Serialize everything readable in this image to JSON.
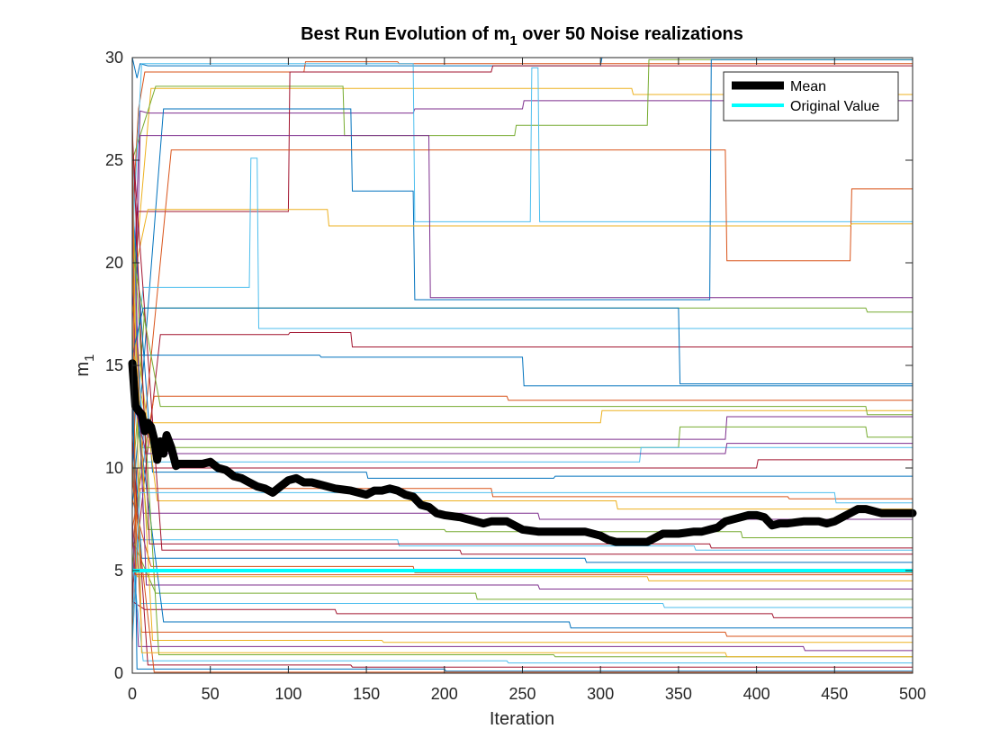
{
  "chart_data": {
    "type": "line",
    "title": "Best Run Evolution of m",
    "title_subscript": "1",
    "title_suffix": " over 50 Noise realizations",
    "xlabel": "Iteration",
    "ylabel": "m",
    "ylabel_subscript": "1",
    "xlim": [
      0,
      500
    ],
    "ylim": [
      0,
      30
    ],
    "xticks": [
      0,
      50,
      100,
      150,
      200,
      250,
      300,
      350,
      400,
      450,
      500
    ],
    "yticks": [
      0,
      5,
      10,
      15,
      20,
      25,
      30
    ],
    "grid": false,
    "legend_position": "top-right",
    "colors": {
      "mean": "#000000",
      "original": "#00ffff",
      "runs": [
        "#0072bd",
        "#d95319",
        "#edb120",
        "#7e2f8e",
        "#77ac30",
        "#4dbeee",
        "#a2142f"
      ]
    },
    "series": [
      {
        "name": "Mean",
        "x": [
          0,
          2,
          4,
          6,
          8,
          10,
          12,
          14,
          16,
          18,
          20,
          22,
          25,
          28,
          30,
          35,
          40,
          45,
          50,
          55,
          60,
          65,
          70,
          75,
          80,
          85,
          90,
          95,
          100,
          105,
          110,
          115,
          120,
          130,
          140,
          145,
          150,
          155,
          160,
          165,
          170,
          175,
          180,
          185,
          190,
          195,
          200,
          210,
          220,
          225,
          230,
          240,
          245,
          250,
          260,
          270,
          280,
          290,
          300,
          305,
          310,
          320,
          330,
          335,
          340,
          350,
          360,
          365,
          370,
          375,
          380,
          390,
          395,
          400,
          405,
          410,
          415,
          420,
          430,
          440,
          445,
          450,
          455,
          460,
          465,
          470,
          480,
          490,
          500
        ],
        "y": [
          15.1,
          13.0,
          12.8,
          12.6,
          11.8,
          12.2,
          12.0,
          11.4,
          10.4,
          11.3,
          10.7,
          11.6,
          11.0,
          10.1,
          10.2,
          10.2,
          10.2,
          10.2,
          10.3,
          10.0,
          9.9,
          9.6,
          9.5,
          9.3,
          9.1,
          9.0,
          8.8,
          9.1,
          9.4,
          9.5,
          9.3,
          9.3,
          9.2,
          9.0,
          8.9,
          8.8,
          8.7,
          8.9,
          8.9,
          9.0,
          8.9,
          8.7,
          8.6,
          8.2,
          8.1,
          7.8,
          7.7,
          7.6,
          7.4,
          7.3,
          7.4,
          7.4,
          7.2,
          7.0,
          6.9,
          6.9,
          6.9,
          6.9,
          6.7,
          6.5,
          6.4,
          6.4,
          6.4,
          6.6,
          6.8,
          6.8,
          6.9,
          6.9,
          7.0,
          7.1,
          7.4,
          7.6,
          7.7,
          7.7,
          7.6,
          7.2,
          7.3,
          7.3,
          7.4,
          7.4,
          7.3,
          7.4,
          7.6,
          7.8,
          8.0,
          8.0,
          7.8,
          7.8,
          7.8
        ]
      },
      {
        "name": "Original Value",
        "x": [
          0,
          500
        ],
        "y": [
          5.0,
          5.0
        ]
      },
      {
        "x": [
          0,
          3,
          5,
          10,
          300,
          301,
          500
        ],
        "y": [
          30.0,
          29.0,
          29.7,
          29.6,
          29.6,
          30.0,
          30.0
        ]
      },
      {
        "x": [
          0,
          4,
          8,
          110,
          111,
          170,
          171,
          500
        ],
        "y": [
          22.0,
          27.5,
          29.3,
          29.3,
          29.8,
          29.8,
          29.7,
          29.7
        ]
      },
      {
        "x": [
          0,
          12,
          20,
          320,
          321,
          500
        ],
        "y": [
          18.0,
          28.5,
          28.5,
          28.5,
          28.2,
          28.2
        ]
      },
      {
        "x": [
          0,
          5,
          10,
          180,
          181,
          250,
          251,
          500
        ],
        "y": [
          17.0,
          27.4,
          27.3,
          27.3,
          27.5,
          27.5,
          27.9,
          27.9
        ]
      },
      {
        "x": [
          0,
          15,
          20,
          135,
          136,
          245,
          246,
          330,
          331,
          500
        ],
        "y": [
          25.0,
          28.6,
          28.6,
          28.6,
          26.2,
          26.2,
          26.7,
          26.7,
          29.9,
          29.9
        ]
      },
      {
        "x": [
          0,
          6,
          10,
          180,
          181,
          255,
          256,
          260,
          261,
          500
        ],
        "y": [
          21.0,
          29.7,
          29.7,
          29.7,
          22.0,
          22.0,
          29.5,
          29.5,
          22.0,
          22.0
        ]
      },
      {
        "x": [
          0,
          3,
          8,
          100,
          101,
          230,
          231,
          500
        ],
        "y": [
          12.0,
          22.5,
          22.5,
          22.5,
          29.3,
          29.3,
          29.6,
          29.6
        ]
      },
      {
        "x": [
          0,
          20,
          25,
          140,
          141,
          180,
          181,
          370,
          371,
          500
        ],
        "y": [
          8.0,
          27.5,
          27.5,
          27.5,
          23.5,
          23.5,
          18.2,
          18.2,
          29.9,
          29.9
        ]
      },
      {
        "x": [
          0,
          25,
          30,
          380,
          381,
          460,
          461,
          500
        ],
        "y": [
          6.0,
          25.5,
          25.5,
          25.5,
          20.1,
          20.1,
          23.6,
          23.6
        ]
      },
      {
        "x": [
          0,
          10,
          15,
          125,
          126,
          460,
          461,
          500
        ],
        "y": [
          19.0,
          22.6,
          22.6,
          22.6,
          21.8,
          21.8,
          21.9,
          21.9
        ]
      },
      {
        "x": [
          0,
          5,
          12,
          190,
          191,
          500
        ],
        "y": [
          11.0,
          26.2,
          26.2,
          26.2,
          18.3,
          18.3
        ]
      },
      {
        "x": [
          0,
          8,
          15,
          470,
          471,
          500
        ],
        "y": [
          9.0,
          17.8,
          17.8,
          17.8,
          17.6,
          17.6
        ]
      },
      {
        "x": [
          0,
          7,
          12,
          75,
          76,
          80,
          81,
          500
        ],
        "y": [
          14.0,
          18.8,
          18.8,
          18.8,
          25.1,
          25.1,
          16.8,
          16.8
        ]
      },
      {
        "x": [
          0,
          18,
          22,
          100,
          101,
          140,
          141,
          500
        ],
        "y": [
          4.0,
          16.5,
          16.5,
          16.5,
          16.6,
          16.6,
          15.9,
          15.9
        ]
      },
      {
        "x": [
          0,
          4,
          9,
          120,
          121,
          250,
          251,
          500
        ],
        "y": [
          10.0,
          15.5,
          15.5,
          15.5,
          15.4,
          15.4,
          14.0,
          14.0
        ]
      },
      {
        "x": [
          0,
          14,
          18,
          240,
          241,
          500
        ],
        "y": [
          7.0,
          13.5,
          13.5,
          13.5,
          13.3,
          13.3
        ]
      },
      {
        "x": [
          0,
          9,
          13,
          300,
          301,
          500
        ],
        "y": [
          16.0,
          12.2,
          12.2,
          12.2,
          12.8,
          12.8
        ]
      },
      {
        "x": [
          0,
          11,
          16,
          380,
          381,
          500
        ],
        "y": [
          13.0,
          11.4,
          11.4,
          11.4,
          12.5,
          12.5
        ]
      },
      {
        "x": [
          0,
          6,
          11,
          350,
          351,
          470,
          471,
          500
        ],
        "y": [
          5.0,
          11.0,
          11.0,
          11.0,
          12.0,
          12.0,
          11.5,
          11.5
        ]
      },
      {
        "x": [
          0,
          8,
          14,
          325,
          326,
          500
        ],
        "y": [
          20.0,
          10.3,
          10.3,
          10.3,
          11.0,
          11.0
        ]
      },
      {
        "x": [
          0,
          3,
          8,
          400,
          401,
          500
        ],
        "y": [
          3.0,
          10.0,
          10.0,
          10.0,
          10.4,
          10.4
        ]
      },
      {
        "x": [
          0,
          13,
          18,
          150,
          151,
          270,
          271,
          500
        ],
        "y": [
          23.0,
          9.8,
          9.8,
          9.8,
          9.5,
          9.5,
          9.6,
          9.6
        ]
      },
      {
        "x": [
          0,
          5,
          10,
          230,
          231,
          420,
          421,
          500
        ],
        "y": [
          2.0,
          9.0,
          9.0,
          9.0,
          8.6,
          8.6,
          8.5,
          8.5
        ]
      },
      {
        "x": [
          0,
          16,
          21,
          310,
          311,
          500
        ],
        "y": [
          18.0,
          8.4,
          8.4,
          8.4,
          8.0,
          8.0
        ]
      },
      {
        "x": [
          0,
          7,
          12,
          260,
          261,
          500
        ],
        "y": [
          24.0,
          7.8,
          7.8,
          7.8,
          7.5,
          7.5
        ]
      },
      {
        "x": [
          0,
          10,
          14,
          200,
          201,
          390,
          391,
          500
        ],
        "y": [
          15.0,
          7.0,
          7.0,
          7.0,
          6.9,
          6.9,
          6.6,
          6.6
        ]
      },
      {
        "x": [
          0,
          4,
          9,
          170,
          171,
          360,
          361,
          500
        ],
        "y": [
          1.5,
          6.5,
          6.5,
          6.5,
          6.2,
          6.2,
          6.0,
          6.0
        ]
      },
      {
        "x": [
          0,
          19,
          23,
          210,
          211,
          500
        ],
        "y": [
          26.0,
          6.0,
          6.0,
          6.0,
          5.8,
          5.8
        ]
      },
      {
        "x": [
          0,
          6,
          11,
          290,
          291,
          500
        ],
        "y": [
          12.5,
          5.6,
          5.6,
          5.6,
          5.4,
          5.4
        ]
      },
      {
        "x": [
          0,
          12,
          17,
          180,
          181,
          500
        ],
        "y": [
          8.5,
          5.2,
          5.2,
          5.2,
          4.9,
          4.9
        ]
      },
      {
        "x": [
          0,
          3,
          7,
          330,
          331,
          500
        ],
        "y": [
          17.5,
          4.7,
          4.7,
          4.7,
          4.5,
          4.5
        ]
      },
      {
        "x": [
          0,
          9,
          14,
          260,
          261,
          500
        ],
        "y": [
          21.5,
          4.3,
          4.3,
          4.3,
          4.1,
          4.1
        ]
      },
      {
        "x": [
          0,
          15,
          19,
          220,
          221,
          500
        ],
        "y": [
          6.5,
          3.9,
          3.9,
          3.9,
          3.6,
          3.6
        ]
      },
      {
        "x": [
          0,
          5,
          10,
          340,
          341,
          500
        ],
        "y": [
          27.0,
          3.4,
          3.4,
          3.4,
          3.2,
          3.2
        ]
      },
      {
        "x": [
          0,
          8,
          13,
          130,
          131,
          410,
          411,
          500
        ],
        "y": [
          3.5,
          3.1,
          3.1,
          3.1,
          2.9,
          2.9,
          2.7,
          2.7
        ]
      },
      {
        "x": [
          0,
          20,
          24,
          280,
          281,
          500
        ],
        "y": [
          14.5,
          2.5,
          2.5,
          2.5,
          2.2,
          2.2
        ]
      },
      {
        "x": [
          0,
          6,
          11,
          380,
          381,
          500
        ],
        "y": [
          10.5,
          2.0,
          2.0,
          2.0,
          1.8,
          1.8
        ]
      },
      {
        "x": [
          0,
          13,
          18,
          160,
          161,
          500
        ],
        "y": [
          19.5,
          1.6,
          1.6,
          1.6,
          1.5,
          1.5
        ]
      },
      {
        "x": [
          0,
          4,
          9,
          430,
          431,
          500
        ],
        "y": [
          7.5,
          1.3,
          1.3,
          1.3,
          1.1,
          1.1
        ]
      },
      {
        "x": [
          0,
          17,
          22,
          270,
          271,
          500
        ],
        "y": [
          22.5,
          0.9,
          0.9,
          0.9,
          0.8,
          0.8
        ]
      },
      {
        "x": [
          0,
          7,
          12,
          240,
          241,
          500
        ],
        "y": [
          5.5,
          0.6,
          0.6,
          0.6,
          0.5,
          0.5
        ]
      },
      {
        "x": [
          0,
          10,
          15,
          140,
          141,
          500
        ],
        "y": [
          11.5,
          0.4,
          0.4,
          0.4,
          0.3,
          0.3
        ]
      },
      {
        "x": [
          0,
          3,
          8,
          200,
          201,
          500
        ],
        "y": [
          16.5,
          0.2,
          0.2,
          0.2,
          0.1,
          0.1
        ]
      },
      {
        "x": [
          0,
          14,
          19,
          500
        ],
        "y": [
          9.5,
          0.05,
          0.05,
          0.05
        ]
      },
      {
        "x": [
          0,
          6,
          11,
          380,
          381,
          500
        ],
        "y": [
          24.5,
          1.0,
          1.0,
          1.0,
          0.8,
          0.8
        ]
      },
      {
        "x": [
          0,
          9,
          14,
          380,
          381,
          500
        ],
        "y": [
          13.5,
          10.7,
          10.7,
          10.7,
          11.2,
          11.2
        ]
      },
      {
        "x": [
          0,
          18,
          23,
          470,
          471,
          500
        ],
        "y": [
          20.5,
          13.0,
          13.0,
          13.0,
          12.6,
          12.6
        ]
      },
      {
        "x": [
          0,
          5,
          9,
          450,
          451,
          500
        ],
        "y": [
          2.5,
          8.8,
          8.8,
          8.8,
          8.3,
          8.3
        ]
      },
      {
        "x": [
          0,
          11,
          16,
          370,
          371,
          500
        ],
        "y": [
          26.5,
          6.3,
          6.3,
          6.3,
          6.1,
          6.1
        ]
      },
      {
        "x": [
          0,
          7,
          13,
          350,
          351,
          500
        ],
        "y": [
          15.5,
          17.8,
          17.8,
          17.8,
          14.1,
          14.1
        ]
      },
      {
        "x": [
          0,
          2,
          6,
          500
        ],
        "y": [
          28.0,
          4.8,
          4.8,
          4.8
        ]
      }
    ]
  }
}
